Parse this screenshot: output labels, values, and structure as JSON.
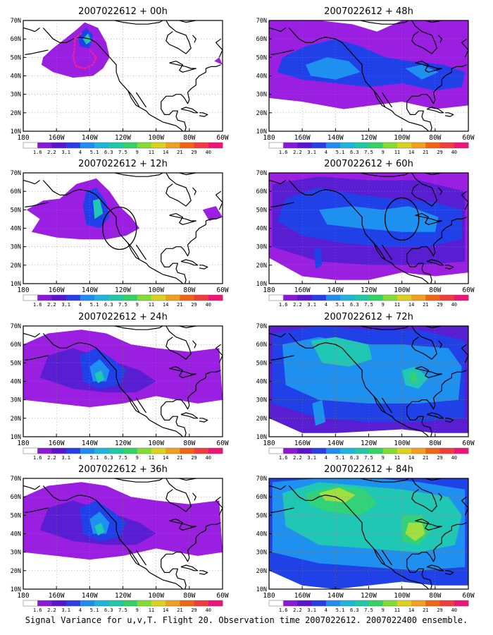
{
  "footer": "Signal Variance for u,v,T. Flight 20. Observation time 2007022612. 2007022400 ensemble.",
  "lat_ticks": [
    "70N",
    "60N",
    "50N",
    "40N",
    "30N",
    "20N",
    "10N"
  ],
  "lon_ticks": [
    "180",
    "160W",
    "140W",
    "120W",
    "100W",
    "80W",
    "60W"
  ],
  "colorbar": {
    "labels": [
      "1.6",
      "2.2",
      "3.1",
      "4",
      "5.1",
      "6.3",
      "7.5",
      "9",
      "11",
      "14",
      "21",
      "29",
      "40"
    ],
    "colors": [
      "#ffffff",
      "#8a18d8",
      "#5a14d0",
      "#2a3ce8",
      "#1e8cf0",
      "#1eb4dc",
      "#1ec8a8",
      "#32d264",
      "#82dc32",
      "#dcd21e",
      "#f0a01e",
      "#f06414",
      "#f03c3c",
      "#f01478"
    ]
  },
  "fill_colors": {
    "purple": "#9b1fe0",
    "indigo": "#5a1ed2",
    "blue": "#2040e8",
    "lightblue": "#1e90f0",
    "cyan": "#1ec8b4",
    "green": "#32d278",
    "lime": "#a0e03c"
  },
  "coast_color": "#000000",
  "panels": [
    {
      "title": "2007022612 + 00h",
      "level": 0,
      "circle": false,
      "flight_track": true
    },
    {
      "title": "2007022612 + 48h",
      "level": 3,
      "circle": false,
      "flight_track": false
    },
    {
      "title": "2007022612 + 12h",
      "level": 1,
      "circle": true,
      "flight_track": false
    },
    {
      "title": "2007022612 + 60h",
      "level": 4,
      "circle": true,
      "flight_track": false
    },
    {
      "title": "2007022612 + 24h",
      "level": 2,
      "circle": false,
      "flight_track": false
    },
    {
      "title": "2007022612 + 72h",
      "level": 5,
      "circle": false,
      "flight_track": false
    },
    {
      "title": "2007022612 + 36h",
      "level": 2,
      "circle": false,
      "flight_track": false
    },
    {
      "title": "2007022612 + 84h",
      "level": 6,
      "circle": false,
      "flight_track": false
    }
  ]
}
